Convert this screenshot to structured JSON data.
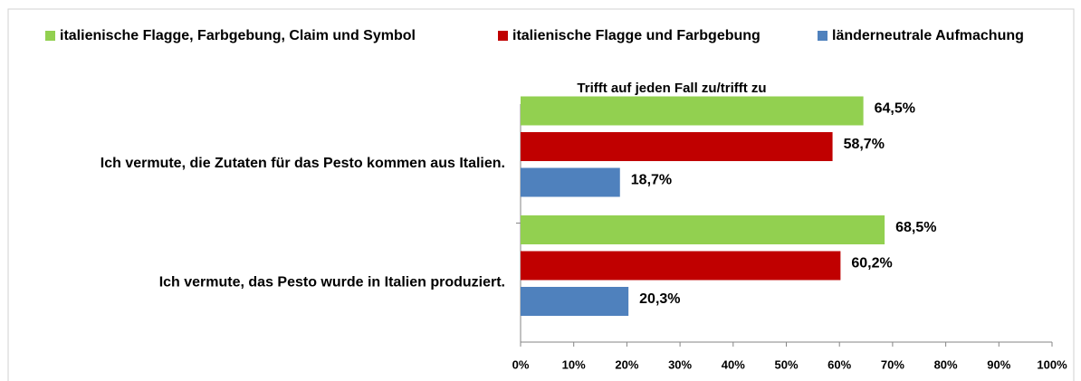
{
  "chart_data": {
    "type": "hbar",
    "title": "Trifft auf jeden Fall zu/trifft zu",
    "categories": [
      "Ich vermute, die Zutaten für das Pesto kommen aus Italien.",
      "Ich vermute, das Pesto wurde in Italien produziert."
    ],
    "series": [
      {
        "name": "italienische Flagge, Farbgebung, Claim und Symbol",
        "color": "#92d050",
        "values": [
          64.5,
          68.5
        ],
        "value_labels": [
          "64,5%",
          "68,5%"
        ]
      },
      {
        "name": "italienische Flagge und Farbgebung",
        "color": "#c00000",
        "values": [
          58.7,
          60.2
        ],
        "value_labels": [
          "58,7%",
          "60,2%"
        ]
      },
      {
        "name": "länderneutrale Aufmachung",
        "color": "#4f81bd",
        "values": [
          18.7,
          20.3
        ],
        "value_labels": [
          "18,7%",
          "20,3%"
        ]
      }
    ],
    "xlim": [
      0,
      100
    ],
    "xticks": [
      {
        "value": 0,
        "label": "0%"
      },
      {
        "value": 10,
        "label": "10%"
      },
      {
        "value": 20,
        "label": "20%"
      },
      {
        "value": 30,
        "label": "30%"
      },
      {
        "value": 40,
        "label": "40%"
      },
      {
        "value": 50,
        "label": "50%"
      },
      {
        "value": 60,
        "label": "60%"
      },
      {
        "value": 70,
        "label": "70%"
      },
      {
        "value": 80,
        "label": "80%"
      },
      {
        "value": 90,
        "label": "90%"
      },
      {
        "value": 100,
        "label": "100%"
      }
    ],
    "legend": "top"
  }
}
